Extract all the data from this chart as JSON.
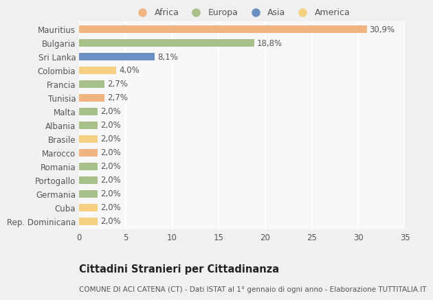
{
  "countries": [
    "Mauritius",
    "Bulgaria",
    "Sri Lanka",
    "Colombia",
    "Francia",
    "Tunisia",
    "Malta",
    "Albania",
    "Brasile",
    "Marocco",
    "Romania",
    "Portogallo",
    "Germania",
    "Cuba",
    "Rep. Dominicana"
  ],
  "values": [
    30.9,
    18.8,
    8.1,
    4.0,
    2.7,
    2.7,
    2.0,
    2.0,
    2.0,
    2.0,
    2.0,
    2.0,
    2.0,
    2.0,
    2.0
  ],
  "labels": [
    "30,9%",
    "18,8%",
    "8,1%",
    "4,0%",
    "2,7%",
    "2,7%",
    "2,0%",
    "2,0%",
    "2,0%",
    "2,0%",
    "2,0%",
    "2,0%",
    "2,0%",
    "2,0%",
    "2,0%"
  ],
  "colors": [
    "#F0B482",
    "#A8C08A",
    "#6B8FC0",
    "#F5D080",
    "#A8C08A",
    "#F0B482",
    "#A8C08A",
    "#A8C08A",
    "#F5D080",
    "#F0B482",
    "#A8C08A",
    "#A8C08A",
    "#A8C08A",
    "#F5D080",
    "#F5D080"
  ],
  "legend_labels": [
    "Africa",
    "Europa",
    "Asia",
    "America"
  ],
  "legend_colors": [
    "#F0B482",
    "#A8C08A",
    "#6B8FC0",
    "#F5D080"
  ],
  "xlim": [
    0,
    35
  ],
  "xticks": [
    0,
    5,
    10,
    15,
    20,
    25,
    30,
    35
  ],
  "title": "Cittadini Stranieri per Cittadinanza",
  "subtitle": "COMUNE DI ACI CATENA (CT) - Dati ISTAT al 1° gennaio di ogni anno - Elaborazione TUTTITALIA.IT",
  "bg_color": "#f0f0f0",
  "plot_bg_color": "#f8f8f8",
  "bar_height": 0.55,
  "label_fontsize": 8.5,
  "tick_fontsize": 8.5,
  "title_fontsize": 10.5,
  "subtitle_fontsize": 7.5
}
